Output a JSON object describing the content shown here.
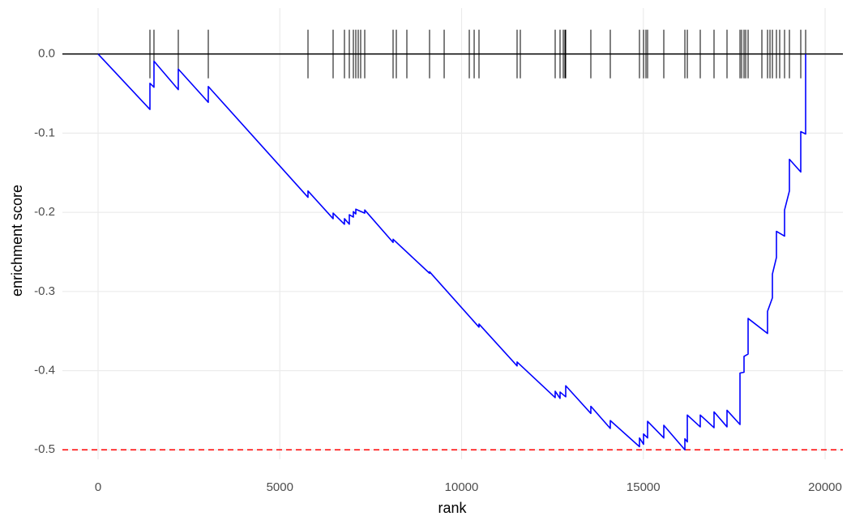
{
  "chart_data": {
    "type": "line",
    "xlabel": "rank",
    "ylabel": "enrichment score",
    "x": [
      0,
      1427,
      1427,
      1538,
      1538,
      2207,
      2207,
      3032,
      3032,
      5775,
      5775,
      6466,
      6466,
      6778,
      6778,
      6912,
      6912,
      7023,
      7023,
      7090,
      7090,
      7336,
      7336,
      8116,
      8116,
      9119,
      9119,
      10479,
      10479,
      11527,
      11527,
      12575,
      12575,
      12709,
      12709,
      12865,
      12865,
      13556,
      13556,
      14091,
      14091,
      14894,
      14894,
      15006,
      15006,
      15117,
      15117,
      15563,
      15563,
      16143,
      16143,
      16210,
      16210,
      16566,
      16566,
      16945,
      16945,
      17302,
      17302,
      17659,
      17659,
      17770,
      17770,
      17882,
      17882,
      18417,
      18417,
      18551,
      18551,
      18662,
      18662,
      18885,
      18885,
      19019,
      19019,
      19331,
      19331,
      19465,
      19465
    ],
    "series": [
      {
        "color": "#0000ff",
        "values": [
          0,
          -0.07,
          -0.037,
          -0.042,
          -0.009,
          -0.045,
          -0.019,
          -0.061,
          -0.041,
          -0.181,
          -0.173,
          -0.208,
          -0.201,
          -0.215,
          -0.208,
          -0.215,
          -0.203,
          -0.206,
          -0.199,
          -0.202,
          -0.196,
          -0.201,
          -0.197,
          -0.238,
          -0.234,
          -0.277,
          -0.275,
          -0.345,
          -0.341,
          -0.394,
          -0.389,
          -0.434,
          -0.426,
          -0.435,
          -0.427,
          -0.433,
          -0.419,
          -0.454,
          -0.445,
          -0.473,
          -0.463,
          -0.496,
          -0.485,
          -0.493,
          -0.48,
          -0.485,
          -0.464,
          -0.485,
          -0.469,
          -0.5,
          -0.486,
          -0.49,
          -0.456,
          -0.471,
          -0.456,
          -0.472,
          -0.452,
          -0.471,
          -0.45,
          -0.468,
          -0.403,
          -0.402,
          -0.382,
          -0.379,
          -0.334,
          -0.353,
          -0.325,
          -0.308,
          -0.278,
          -0.257,
          -0.224,
          -0.23,
          -0.197,
          -0.173,
          -0.133,
          -0.149,
          -0.098,
          -0.101,
          0
        ]
      }
    ],
    "hits": [
      1427,
      1538,
      2207,
      3032,
      5775,
      6466,
      6778,
      6912,
      7023,
      7090,
      7157,
      7224,
      7336,
      8116,
      8205,
      8495,
      9119,
      9521,
      10212,
      10346,
      10479,
      11527,
      11616,
      12575,
      12709,
      12798,
      12843,
      12865,
      13556,
      14091,
      14894,
      15006,
      15072,
      15117,
      15563,
      16143,
      16210,
      16566,
      16945,
      17302,
      17659,
      17703,
      17770,
      17815,
      17882,
      18261,
      18417,
      18484,
      18551,
      18662,
      18751,
      18885,
      19019,
      19331,
      19465
    ],
    "hits_color": "#000000",
    "hline": -0.5,
    "hline_color": "#ff0000",
    "xlim": [
      -981,
      20490
    ],
    "ylim": [
      -0.512,
      0.058
    ],
    "xticks": [
      0,
      5000,
      10000,
      15000,
      20000
    ],
    "yticks": [
      {
        "value": 0,
        "label": "0.0"
      },
      -0.1,
      -0.2,
      -0.3,
      -0.4,
      -0.5
    ],
    "grid": true
  }
}
